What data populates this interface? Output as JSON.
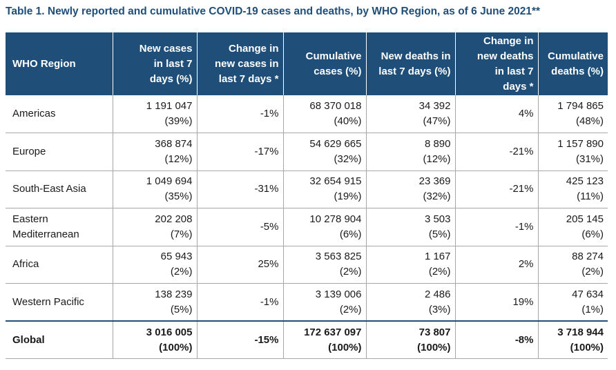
{
  "title": "Table 1. Newly reported and cumulative COVID-19 cases and deaths, by WHO Region, as of 6 June 2021**",
  "headers": [
    [
      "WHO Region"
    ],
    [
      "New cases",
      "in last 7",
      "days (%)"
    ],
    [
      "Change in",
      "new cases in",
      "last 7 days *"
    ],
    [
      "Cumulative",
      "cases (%)"
    ],
    [
      "New deaths in",
      "last 7 days (%)"
    ],
    [
      "Change in",
      "new deaths",
      "in last 7",
      "days *"
    ],
    [
      "Cumulative",
      "deaths (%)"
    ]
  ],
  "rows": [
    {
      "region": [
        "Americas"
      ],
      "new_cases": [
        "1 191 047",
        "(39%)"
      ],
      "change_cases": "-1%",
      "cum_cases": [
        "68 370 018",
        "(40%)"
      ],
      "new_deaths": [
        "34 392",
        "(47%)"
      ],
      "change_deaths": "4%",
      "cum_deaths": [
        "1 794 865",
        "(48%)"
      ]
    },
    {
      "region": [
        "Europe"
      ],
      "new_cases": [
        "368 874",
        "(12%)"
      ],
      "change_cases": "-17%",
      "cum_cases": [
        "54 629 665",
        "(32%)"
      ],
      "new_deaths": [
        "8 890",
        "(12%)"
      ],
      "change_deaths": "-21%",
      "cum_deaths": [
        "1 157 890",
        "(31%)"
      ]
    },
    {
      "region": [
        "South-East Asia"
      ],
      "new_cases": [
        "1 049 694",
        "(35%)"
      ],
      "change_cases": "-31%",
      "cum_cases": [
        "32 654 915",
        "(19%)"
      ],
      "new_deaths": [
        "23 369",
        "(32%)"
      ],
      "change_deaths": "-21%",
      "cum_deaths": [
        "425 123",
        "(11%)"
      ]
    },
    {
      "region": [
        "Eastern",
        "Mediterranean"
      ],
      "new_cases": [
        "202 208",
        "(7%)"
      ],
      "change_cases": "-5%",
      "cum_cases": [
        "10 278 904",
        "(6%)"
      ],
      "new_deaths": [
        "3 503",
        "(5%)"
      ],
      "change_deaths": "-1%",
      "cum_deaths": [
        "205 145",
        "(6%)"
      ]
    },
    {
      "region": [
        "Africa"
      ],
      "new_cases": [
        "65 943",
        "(2%)"
      ],
      "change_cases": "25%",
      "cum_cases": [
        "3 563 825",
        "(2%)"
      ],
      "new_deaths": [
        "1 167",
        "(2%)"
      ],
      "change_deaths": "2%",
      "cum_deaths": [
        "88 274",
        "(2%)"
      ]
    },
    {
      "region": [
        "Western Pacific"
      ],
      "new_cases": [
        "138 239",
        "(5%)"
      ],
      "change_cases": "-1%",
      "cum_cases": [
        "3 139 006",
        "(2%)"
      ],
      "new_deaths": [
        "2 486",
        "(3%)"
      ],
      "change_deaths": "19%",
      "cum_deaths": [
        "47 634",
        "(1%)"
      ]
    },
    {
      "region": [
        "Global"
      ],
      "new_cases": [
        "3 016 005",
        "(100%)"
      ],
      "change_cases": "-15%",
      "cum_cases": [
        "172 637 097",
        "(100%)"
      ],
      "new_deaths": [
        "73 807",
        "(100%)"
      ],
      "change_deaths": "-8%",
      "cum_deaths": [
        "3 718 944",
        "(100%)"
      ]
    }
  ]
}
